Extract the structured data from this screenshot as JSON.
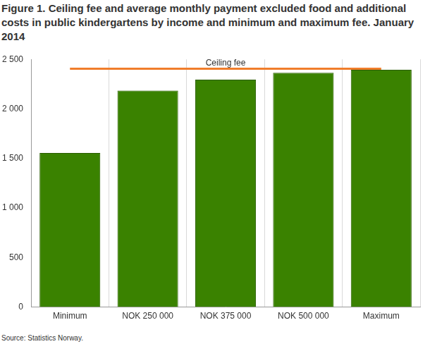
{
  "chart_data": {
    "type": "bar",
    "title": "Figure 1. Ceiling fee and average monthly payment excluded food and additional costs in public kindergartens by income and minimum and maximum fee. January 2014",
    "categories": [
      "Minimum",
      "NOK 250 000",
      "NOK 375 000",
      "NOK 500 000",
      "Maximum"
    ],
    "values": [
      1555,
      2185,
      2295,
      2365,
      2395
    ],
    "color": "#3a8200",
    "reference_line": {
      "label": "Ceiling fee",
      "value": 2405,
      "color": "#f07d2b"
    },
    "ylim": [
      0,
      2500
    ],
    "yticks": [
      0,
      500,
      {
        "value": 1000,
        "label": "1 000"
      },
      {
        "value": 1500,
        "label": "1 500"
      },
      {
        "value": 2000,
        "label": "2 000"
      },
      {
        "value": 2500,
        "label": "2 500"
      }
    ],
    "grid": true,
    "source": "Source: Statistics Norway."
  }
}
